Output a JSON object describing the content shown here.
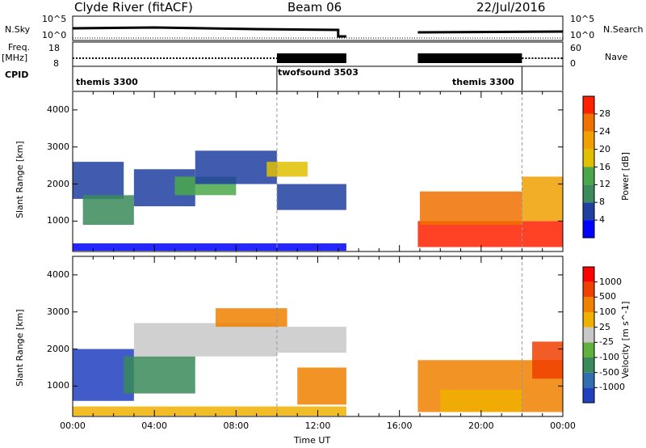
{
  "header": {
    "title": "Clyde River (fitACF)",
    "beam": "Beam 06",
    "date": "22/Jul/2016"
  },
  "strip": {
    "nsky_label": "N.Sky",
    "nsearch_label": "N.Search",
    "nsky_ticks": [
      "10^5",
      "10^0"
    ],
    "nsearch_ticks": [
      "10^5",
      "10^0"
    ],
    "freq_label_1": "Freq.",
    "freq_label_2": "[MHz]",
    "freq_ticks": [
      "18",
      "8"
    ],
    "nave_label": "Nave",
    "nave_ticks": [
      "60",
      "0"
    ],
    "cpid_label": "CPID",
    "cpid_segments": [
      {
        "name": "themis 3300",
        "start_h": 0,
        "end_h": 10
      },
      {
        "name": "twofsound 3503",
        "start_h": 10,
        "end_h": 22
      },
      {
        "name": "themis 3300",
        "start_h": 22,
        "end_h": 24
      }
    ],
    "cpid_labels": [
      "themis 3300",
      "twofsound 3503",
      "themis 3300"
    ]
  },
  "colors": {
    "power": [
      "#0000ff",
      "#2040a0",
      "#3a8a5a",
      "#4aa84a",
      "#e0c000",
      "#f0a000",
      "#f07000",
      "#ff2000"
    ],
    "velocity": [
      "#2040c0",
      "#3070b0",
      "#3a8a5a",
      "#60b040",
      "#c8c8c8",
      "#f0b000",
      "#f08000",
      "#f04000",
      "#ff0000"
    ]
  },
  "chart_data": [
    {
      "type": "heatmap",
      "name_of_quantity": "Power",
      "ylabel": "Slant Range [km]",
      "x_range_hours": [
        0,
        24
      ],
      "ylim": [
        180,
        4500
      ],
      "yticks": [
        1000,
        2000,
        3000,
        4000
      ],
      "colorbar_label": "Power [dB]",
      "colorbar_ticks": [
        "28",
        "24",
        "20",
        "16",
        "12",
        "8",
        "4"
      ],
      "data_gaps_hours": [
        [
          13.4,
          16.9
        ]
      ],
      "regions": [
        {
          "t0": 0.0,
          "t1": 13.4,
          "r0": 200,
          "r1": 400,
          "level": 0
        },
        {
          "t0": 0.0,
          "t1": 2.5,
          "r0": 1600,
          "r1": 2600,
          "level": 1
        },
        {
          "t0": 0.5,
          "t1": 3.0,
          "r0": 900,
          "r1": 1700,
          "level": 2
        },
        {
          "t0": 3.0,
          "t1": 6.0,
          "r0": 1400,
          "r1": 2400,
          "level": 1
        },
        {
          "t0": 5.0,
          "t1": 8.0,
          "r0": 1700,
          "r1": 2200,
          "level": 3
        },
        {
          "t0": 6.0,
          "t1": 10.0,
          "r0": 2000,
          "r1": 2900,
          "level": 1
        },
        {
          "t0": 9.5,
          "t1": 11.5,
          "r0": 2200,
          "r1": 2600,
          "level": 4
        },
        {
          "t0": 10.0,
          "t1": 13.4,
          "r0": 1300,
          "r1": 2000,
          "level": 1
        },
        {
          "t0": 16.9,
          "t1": 24.0,
          "r0": 300,
          "r1": 1000,
          "level": 7
        },
        {
          "t0": 17.0,
          "t1": 22.0,
          "r0": 900,
          "r1": 1800,
          "level": 6
        },
        {
          "t0": 22.0,
          "t1": 24.0,
          "r0": 1000,
          "r1": 2200,
          "level": 5
        }
      ]
    },
    {
      "type": "heatmap",
      "name_of_quantity": "Velocity",
      "ylabel": "Slant Range [km]",
      "xlabel": "Time UT",
      "x_range_hours": [
        0,
        24
      ],
      "xticks": [
        "00:00",
        "04:00",
        "08:00",
        "12:00",
        "16:00",
        "20:00",
        "00:00"
      ],
      "ylim": [
        180,
        4500
      ],
      "yticks": [
        1000,
        2000,
        3000,
        4000
      ],
      "colorbar_label": "Velocity [m s^-1]",
      "colorbar_ticks": [
        "1000",
        "500",
        "100",
        "25",
        "-25",
        "-100",
        "-500",
        "-1000"
      ],
      "data_gaps_hours": [
        [
          13.4,
          16.9
        ]
      ],
      "regions": [
        {
          "t0": 0.0,
          "t1": 13.4,
          "r0": 200,
          "r1": 450,
          "level": 5
        },
        {
          "t0": 0.0,
          "t1": 3.0,
          "r0": 600,
          "r1": 2000,
          "level": 0
        },
        {
          "t0": 2.5,
          "t1": 6.0,
          "r0": 800,
          "r1": 1800,
          "level": 2
        },
        {
          "t0": 3.0,
          "t1": 10.0,
          "r0": 1800,
          "r1": 2700,
          "level": 4
        },
        {
          "t0": 7.0,
          "t1": 10.5,
          "r0": 2600,
          "r1": 3100,
          "level": 6
        },
        {
          "t0": 10.0,
          "t1": 13.4,
          "r0": 1900,
          "r1": 2600,
          "level": 4
        },
        {
          "t0": 11.0,
          "t1": 13.4,
          "r0": 500,
          "r1": 1500,
          "level": 6
        },
        {
          "t0": 16.9,
          "t1": 24.0,
          "r0": 300,
          "r1": 1700,
          "level": 6
        },
        {
          "t0": 18.0,
          "t1": 22.0,
          "r0": 300,
          "r1": 900,
          "level": 5
        },
        {
          "t0": 22.5,
          "t1": 24.0,
          "r0": 1200,
          "r1": 2200,
          "level": 7
        }
      ]
    }
  ]
}
